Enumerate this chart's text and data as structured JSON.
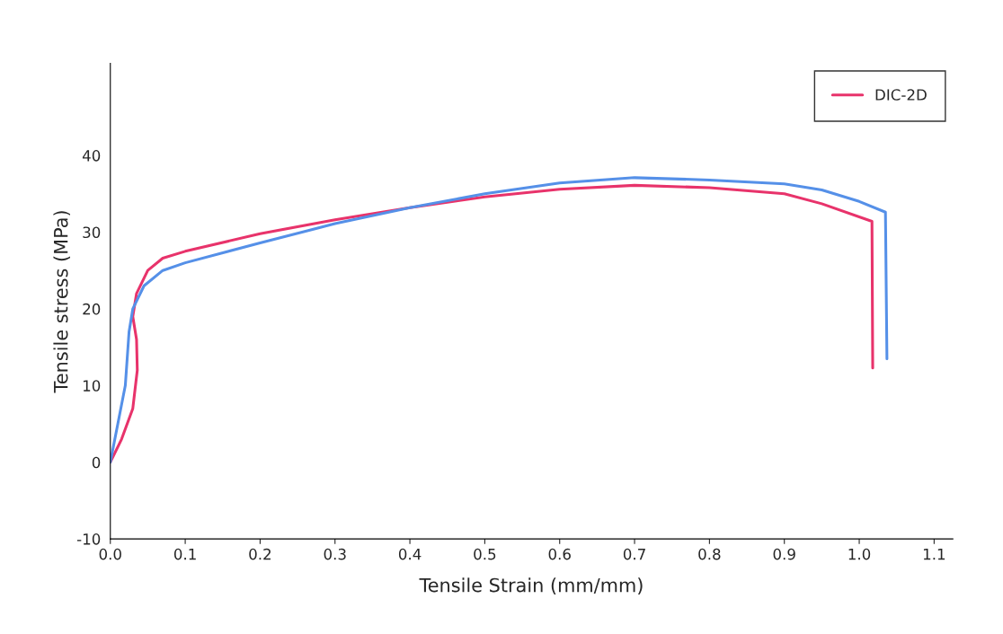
{
  "chart_data": {
    "type": "line",
    "xlabel": "Tensile Strain (mm/mm)",
    "ylabel": "Tensile stress (MPa)",
    "xlim": [
      0,
      1.125
    ],
    "ylim": [
      -10,
      52
    ],
    "xticks": [
      {
        "value": 0,
        "label": "0.0"
      },
      0.1,
      0.2,
      0.3,
      0.4,
      0.5,
      0.6,
      0.7,
      0.8,
      0.9,
      {
        "value": 1,
        "label": "1.0"
      },
      1.1
    ],
    "yticks": [
      -10,
      0,
      10,
      20,
      30,
      40
    ],
    "grid": false,
    "legend": "top right",
    "series": [
      {
        "name": "DIC-2D",
        "color": "#e8336b",
        "x": [
          0,
          0.015,
          0.03,
          0.036,
          0.035,
          0.03,
          0.035,
          0.05,
          0.07,
          0.1,
          0.2,
          0.3,
          0.4,
          0.5,
          0.6,
          0.7,
          0.8,
          0.9,
          0.95,
          1.017,
          1.018
        ],
        "values": [
          0,
          3,
          7,
          12,
          16,
          19,
          22,
          25,
          26.6,
          27.5,
          29.8,
          31.6,
          33.2,
          34.6,
          35.6,
          36.1,
          35.8,
          35,
          33.7,
          31.4,
          12.3
        ]
      },
      {
        "color": "#5590e8",
        "x": [
          0,
          0.01,
          0.02,
          0.025,
          0.03,
          0.045,
          0.07,
          0.1,
          0.2,
          0.3,
          0.4,
          0.5,
          0.6,
          0.7,
          0.8,
          0.9,
          0.95,
          1.0,
          1.035,
          1.037
        ],
        "values": [
          0,
          5,
          10,
          17,
          20,
          23,
          25,
          26,
          28.6,
          31.1,
          33.2,
          35,
          36.4,
          37.1,
          36.8,
          36.3,
          35.5,
          34,
          32.6,
          13.5
        ]
      }
    ]
  }
}
